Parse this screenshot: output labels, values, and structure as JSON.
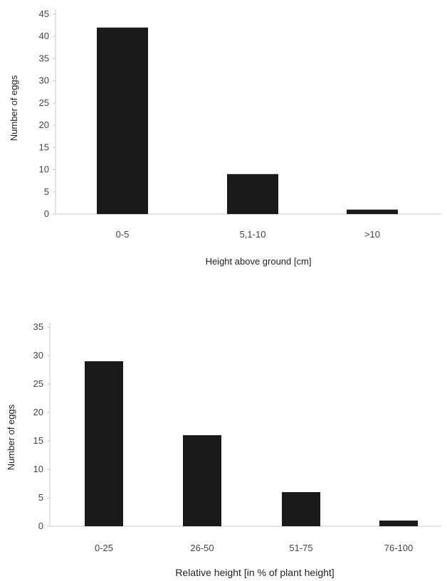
{
  "chart_data": [
    {
      "type": "bar",
      "categories": [
        "0-5",
        "5,1-10",
        ">10"
      ],
      "values": [
        42,
        9,
        1
      ],
      "xlabel": "Height above ground [cm]",
      "ylabel": "Number of eggs",
      "ylim": [
        0,
        45
      ],
      "yticks": [
        "0",
        "5",
        "10",
        "15",
        "20",
        "25",
        "30",
        "35",
        "40",
        "45"
      ],
      "grid": false,
      "bar_color": "#1a1a1a"
    },
    {
      "type": "bar",
      "categories": [
        "0-25",
        "26-50",
        "51-75",
        "76-100"
      ],
      "values": [
        29,
        16,
        6,
        1
      ],
      "xlabel": "Relative height [in % of plant height]",
      "ylabel": "Number of eggs",
      "ylim": [
        0,
        35
      ],
      "yticks": [
        "0",
        "5",
        "10",
        "15",
        "20",
        "25",
        "30",
        "35"
      ],
      "grid": false,
      "bar_color": "#1a1a1a"
    }
  ]
}
